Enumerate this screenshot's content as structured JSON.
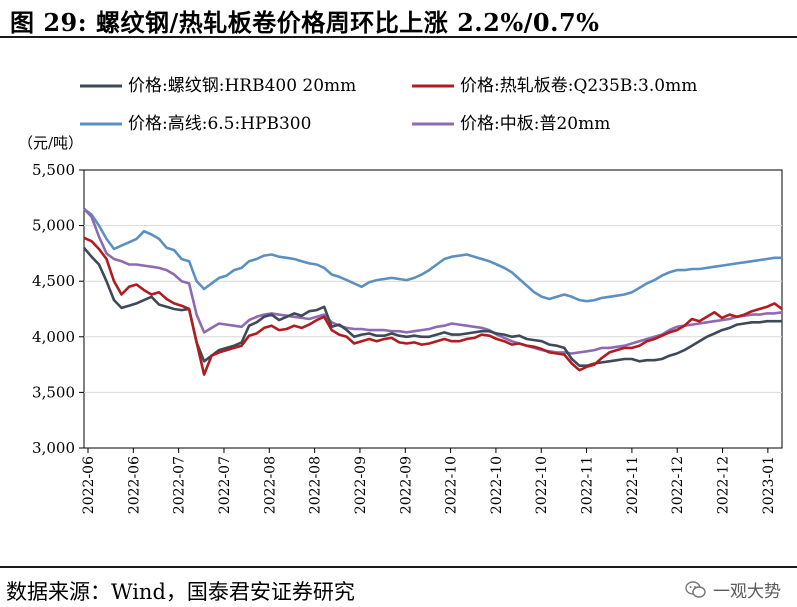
{
  "title": "图 29:  螺纹钢/热轧板卷价格周环比上涨 2.2%/0.7%",
  "source": "数据来源：Wind，国泰君安证券研究",
  "watermark": "一观大势",
  "chart_data": {
    "type": "line",
    "ylabel": "（元/吨）",
    "ylim": [
      3000,
      5500
    ],
    "yticks": [
      "3,000",
      "3,500",
      "4,000",
      "4,500",
      "5,000",
      "5,500"
    ],
    "xticks": [
      "2022-06",
      "2022-06",
      "2022-07",
      "2022-07",
      "2022-08",
      "2022-08",
      "2022-09",
      "2022-09",
      "2022-10",
      "2022-10",
      "2022-10",
      "2022-11",
      "2022-11",
      "2022-12",
      "2022-12",
      "2023-01"
    ],
    "grid": true,
    "legend_position": "top",
    "series": [
      {
        "name": "价格:螺纹钢:HRB400 20mm",
        "color": "#3e4a57",
        "values": [
          4800,
          4720,
          4650,
          4500,
          4330,
          4260,
          4280,
          4300,
          4330,
          4360,
          4290,
          4270,
          4250,
          4240,
          4250,
          3950,
          3780,
          3830,
          3880,
          3900,
          3920,
          3950,
          4100,
          4130,
          4180,
          4200,
          4150,
          4180,
          4210,
          4190,
          4230,
          4240,
          4270,
          4090,
          4110,
          4060,
          4000,
          4020,
          4030,
          4010,
          4010,
          4030,
          4010,
          4000,
          4010,
          4000,
          4000,
          4020,
          4040,
          4020,
          4020,
          4030,
          4040,
          4050,
          4050,
          4030,
          4020,
          4000,
          4010,
          3980,
          3970,
          3960,
          3930,
          3920,
          3900,
          3800,
          3740,
          3740,
          3760,
          3770,
          3780,
          3790,
          3800,
          3800,
          3780,
          3790,
          3790,
          3800,
          3830,
          3850,
          3880,
          3920,
          3960,
          4000,
          4030,
          4060,
          4080,
          4110,
          4120,
          4130,
          4130,
          4140,
          4140,
          4140
        ]
      },
      {
        "name": "价格:热轧板卷:Q235B:3.0mm",
        "color": "#b01c20",
        "values": [
          4890,
          4860,
          4790,
          4700,
          4500,
          4380,
          4450,
          4470,
          4420,
          4380,
          4400,
          4340,
          4300,
          4280,
          4250,
          3950,
          3660,
          3830,
          3860,
          3880,
          3900,
          3920,
          4010,
          4030,
          4080,
          4100,
          4060,
          4070,
          4100,
          4080,
          4110,
          4150,
          4180,
          4060,
          4020,
          4000,
          3940,
          3960,
          3980,
          3960,
          3980,
          3990,
          3950,
          3940,
          3950,
          3930,
          3940,
          3960,
          3980,
          3960,
          3960,
          3980,
          3990,
          4020,
          4010,
          3980,
          3960,
          3930,
          3940,
          3920,
          3910,
          3890,
          3860,
          3850,
          3840,
          3760,
          3700,
          3730,
          3750,
          3810,
          3860,
          3880,
          3900,
          3900,
          3920,
          3960,
          3980,
          4010,
          4040,
          4060,
          4100,
          4160,
          4140,
          4180,
          4220,
          4170,
          4200,
          4180,
          4200,
          4230,
          4250,
          4270,
          4300,
          4250
        ]
      },
      {
        "name": "价格:高线:6.5:HPB300",
        "color": "#5b90c0",
        "values": [
          5150,
          5100,
          5000,
          4880,
          4790,
          4820,
          4850,
          4880,
          4950,
          4920,
          4880,
          4800,
          4780,
          4700,
          4680,
          4500,
          4430,
          4480,
          4530,
          4550,
          4600,
          4620,
          4680,
          4700,
          4730,
          4740,
          4720,
          4710,
          4700,
          4680,
          4660,
          4650,
          4620,
          4560,
          4540,
          4510,
          4480,
          4450,
          4490,
          4510,
          4520,
          4530,
          4520,
          4510,
          4530,
          4560,
          4600,
          4650,
          4700,
          4720,
          4730,
          4740,
          4720,
          4700,
          4680,
          4650,
          4620,
          4580,
          4520,
          4460,
          4400,
          4360,
          4340,
          4360,
          4380,
          4360,
          4330,
          4320,
          4330,
          4350,
          4360,
          4370,
          4380,
          4400,
          4440,
          4480,
          4510,
          4550,
          4580,
          4600,
          4600,
          4610,
          4610,
          4620,
          4630,
          4640,
          4650,
          4660,
          4670,
          4680,
          4690,
          4700,
          4710,
          4710
        ]
      },
      {
        "name": "价格:中板:普20mm",
        "color": "#8e6ab3",
        "values": [
          5150,
          5080,
          4900,
          4750,
          4700,
          4680,
          4650,
          4650,
          4640,
          4630,
          4620,
          4600,
          4560,
          4500,
          4480,
          4200,
          4040,
          4080,
          4120,
          4110,
          4100,
          4090,
          4150,
          4180,
          4200,
          4210,
          4200,
          4190,
          4180,
          4170,
          4160,
          4180,
          4200,
          4130,
          4100,
          4080,
          4070,
          4070,
          4060,
          4060,
          4060,
          4050,
          4050,
          4040,
          4050,
          4060,
          4070,
          4090,
          4100,
          4120,
          4110,
          4100,
          4090,
          4080,
          4060,
          4020,
          3990,
          3960,
          3940,
          3920,
          3900,
          3880,
          3870,
          3860,
          3860,
          3850,
          3860,
          3870,
          3880,
          3900,
          3900,
          3910,
          3920,
          3940,
          3960,
          3980,
          4000,
          4020,
          4060,
          4090,
          4100,
          4110,
          4120,
          4130,
          4140,
          4150,
          4160,
          4180,
          4190,
          4200,
          4200,
          4210,
          4210,
          4220
        ]
      }
    ]
  }
}
